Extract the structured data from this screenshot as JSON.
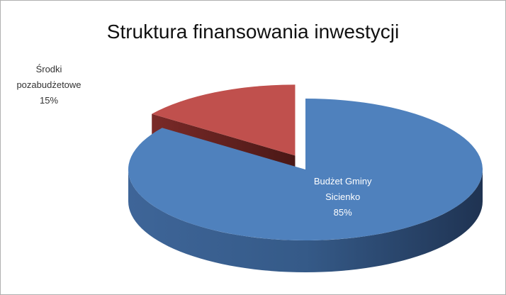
{
  "chart_data": {
    "type": "pie",
    "title": "Struktura finansowania inwestycji",
    "categories": [
      "Budżet Gminy Sicienko",
      "Środki pozabudżetowe"
    ],
    "values": [
      85,
      15
    ],
    "value_labels": [
      "85%",
      "15%"
    ],
    "colors": [
      "#4f81bd",
      "#c0504d"
    ],
    "exploded": [
      false,
      true
    ]
  }
}
